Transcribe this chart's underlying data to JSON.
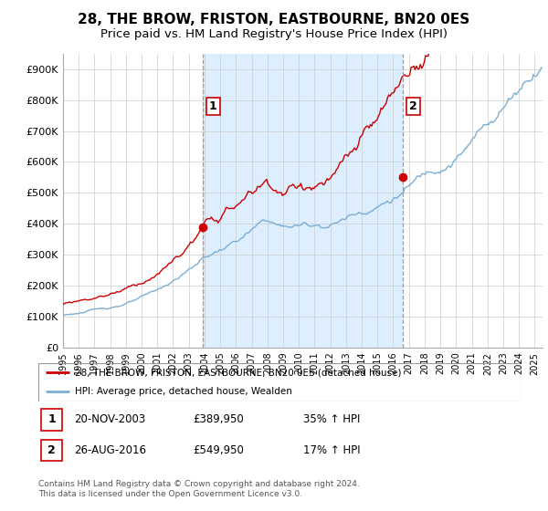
{
  "title": "28, THE BROW, FRISTON, EASTBOURNE, BN20 0ES",
  "subtitle": "Price paid vs. HM Land Registry's House Price Index (HPI)",
  "ylim": [
    0,
    950000
  ],
  "yticks": [
    0,
    100000,
    200000,
    300000,
    400000,
    500000,
    600000,
    700000,
    800000,
    900000
  ],
  "ytick_labels": [
    "£0",
    "£100K",
    "£200K",
    "£300K",
    "£400K",
    "£500K",
    "£600K",
    "£700K",
    "£800K",
    "£900K"
  ],
  "line1_color": "#cc0000",
  "line2_color": "#7bafd4",
  "vline_color": "#999999",
  "shade_color": "#ddeeff",
  "background_color": "#ffffff",
  "legend_label1": "28, THE BROW, FRISTON, EASTBOURNE, BN20 0ES (detached house)",
  "legend_label2": "HPI: Average price, detached house, Wealden",
  "sale1_label": "1",
  "sale1_date": "20-NOV-2003",
  "sale1_price": "£389,950",
  "sale1_hpi": "35% ↑ HPI",
  "sale1_x": 2003.875,
  "sale1_y": 389950,
  "sale2_label": "2",
  "sale2_date": "26-AUG-2016",
  "sale2_price": "£549,950",
  "sale2_hpi": "17% ↑ HPI",
  "sale2_x": 2016.625,
  "sale2_y": 549950,
  "footer": "Contains HM Land Registry data © Crown copyright and database right 2024.\nThis data is licensed under the Open Government Licence v3.0.",
  "title_fontsize": 11,
  "subtitle_fontsize": 9.5,
  "xlim_start": 1995.0,
  "xlim_end": 2025.5
}
